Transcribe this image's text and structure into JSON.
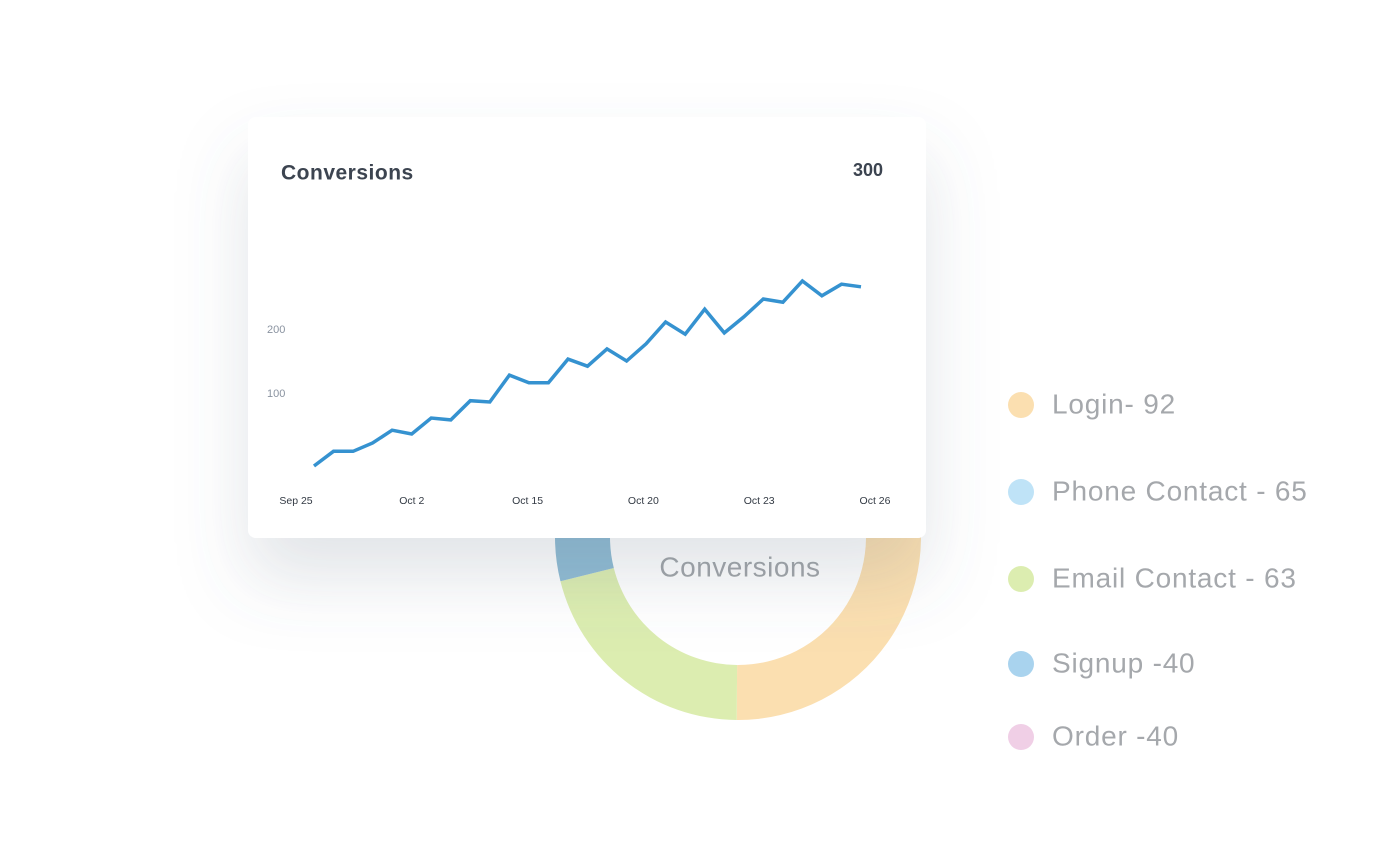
{
  "chart_data": [
    {
      "type": "line",
      "title": "Conversions",
      "total": 300,
      "x_labels": [
        "Sep 25",
        "Oct 2",
        "Oct 15",
        "Oct 20",
        "Oct 23",
        "Oct 26"
      ],
      "values": [
        0,
        23,
        23,
        36,
        56,
        50,
        75,
        72,
        102,
        100,
        142,
        130,
        130,
        167,
        156,
        183,
        164,
        191,
        225,
        206,
        245,
        208,
        233,
        261,
        256,
        289,
        266,
        284,
        280
      ],
      "color": "#3592d0",
      "ylim": [
        0,
        300
      ],
      "yticks": [
        100,
        200
      ]
    },
    {
      "type": "donut",
      "title": "Conversions",
      "values": [
        92,
        63,
        40,
        40,
        65
      ],
      "colors": [
        "#fbdfb0",
        "#dcedb0",
        "#8fbcd4",
        "#f0cfe6",
        "#bfe3f7"
      ],
      "legend": [
        {
          "label": "Login- 92",
          "color": "#fbdfb0"
        },
        {
          "label": "Phone Contact - 65",
          "color": "#bfe3f7"
        },
        {
          "label": "Email Contact - 63",
          "color": "#dcedb0"
        },
        {
          "label": "Signup -40",
          "color": "#a9d3ee"
        },
        {
          "label": "Order -40",
          "color": "#f0cfe6"
        }
      ]
    }
  ]
}
